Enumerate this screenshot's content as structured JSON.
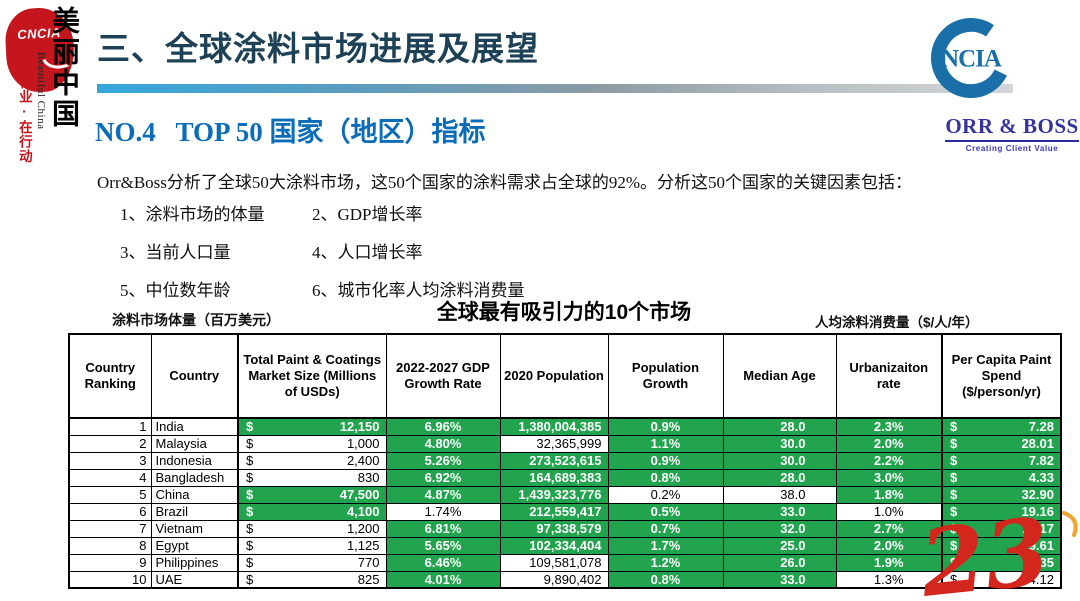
{
  "sidebar": {
    "seal_text": "CNCIA",
    "slogan_cn": "美丽中国",
    "slogan_en": "Beautiful China",
    "industry_text": "涂料行业·在行动"
  },
  "header": {
    "title": "三、全球涂料市场进展及展望",
    "subtitle": "NO.4   TOP 50 国家（地区）指标"
  },
  "logos": {
    "ncia_text": "NCIA",
    "orrboss_name": "ORR & BOSS",
    "orrboss_tagline": "Creating Client Value"
  },
  "intro": {
    "paragraph": "Orr&Boss分析了全球50大涂料市场，这50个国家的涂料需求占全球的92%。分析这50个国家的关键因素包括：",
    "factors": [
      "1、涂料市场的体量",
      "2、GDP增长率",
      "3、当前人口量",
      "4、人口增长率",
      "5、中位数年龄",
      "6、城市化率人均涂料消费量"
    ]
  },
  "table_section": {
    "left_label": "涂料市场体量（百万美元）",
    "title": "全球最有吸引力的10个市场",
    "right_label": "人均涂料消费量（$/人/年）"
  },
  "table": {
    "currency": "$",
    "headers": [
      "Country Ranking",
      "Country",
      "Total Paint & Coatings Market Size (Millions of USDs)",
      "2022-2027 GDP Growth Rate",
      "2020 Population",
      "Population Growth",
      "Median Age",
      "Urbanizaiton rate",
      "Per Capita Paint Spend ($/person/yr)"
    ],
    "rows": [
      {
        "rank": "1",
        "country": "India",
        "market": "12,150",
        "market_hl": true,
        "gdp": "6.96%",
        "gdp_hl": true,
        "pop": "1,380,004,385",
        "pop_hl": true,
        "growth": "0.9%",
        "growth_hl": true,
        "age": "28.0",
        "age_hl": true,
        "urban": "2.3%",
        "urban_hl": true,
        "spend": "7.28",
        "spend_hl": true
      },
      {
        "rank": "2",
        "country": "Malaysia",
        "market": "1,000",
        "market_hl": false,
        "gdp": "4.80%",
        "gdp_hl": true,
        "pop": "32,365,999",
        "pop_hl": false,
        "growth": "1.1%",
        "growth_hl": true,
        "age": "30.0",
        "age_hl": true,
        "urban": "2.0%",
        "urban_hl": true,
        "spend": "28.01",
        "spend_hl": true
      },
      {
        "rank": "3",
        "country": "Indonesia",
        "market": "2,400",
        "market_hl": false,
        "gdp": "5.26%",
        "gdp_hl": true,
        "pop": "273,523,615",
        "pop_hl": true,
        "growth": "0.9%",
        "growth_hl": true,
        "age": "30.0",
        "age_hl": true,
        "urban": "2.2%",
        "urban_hl": true,
        "spend": "7.82",
        "spend_hl": true
      },
      {
        "rank": "4",
        "country": "Bangladesh",
        "market": "830",
        "market_hl": false,
        "gdp": "6.92%",
        "gdp_hl": true,
        "pop": "164,689,383",
        "pop_hl": true,
        "growth": "0.8%",
        "growth_hl": true,
        "age": "28.0",
        "age_hl": true,
        "urban": "3.0%",
        "urban_hl": true,
        "spend": "4.33",
        "spend_hl": true
      },
      {
        "rank": "5",
        "country": "China",
        "market": "47,500",
        "market_hl": true,
        "gdp": "4.87%",
        "gdp_hl": true,
        "pop": "1,439,323,776",
        "pop_hl": true,
        "growth": "0.2%",
        "growth_hl": false,
        "age": "38.0",
        "age_hl": false,
        "urban": "1.8%",
        "urban_hl": true,
        "spend": "32.90",
        "spend_hl": true
      },
      {
        "rank": "6",
        "country": "Brazil",
        "market": "4,100",
        "market_hl": true,
        "gdp": "1.74%",
        "gdp_hl": false,
        "pop": "212,559,417",
        "pop_hl": true,
        "growth": "0.5%",
        "growth_hl": true,
        "age": "33.0",
        "age_hl": true,
        "urban": "1.0%",
        "urban_hl": false,
        "spend": "19.16",
        "spend_hl": true
      },
      {
        "rank": "7",
        "country": "Vietnam",
        "market": "1,200",
        "market_hl": false,
        "gdp": "6.81%",
        "gdp_hl": true,
        "pop": "97,338,579",
        "pop_hl": true,
        "growth": "0.7%",
        "growth_hl": true,
        "age": "32.0",
        "age_hl": true,
        "urban": "2.7%",
        "urban_hl": true,
        "spend": "11.17",
        "spend_hl": true
      },
      {
        "rank": "8",
        "country": "Egypt",
        "market": "1,125",
        "market_hl": false,
        "gdp": "5.65%",
        "gdp_hl": true,
        "pop": "102,334,404",
        "pop_hl": true,
        "growth": "1.7%",
        "growth_hl": true,
        "age": "25.0",
        "age_hl": true,
        "urban": "2.0%",
        "urban_hl": true,
        "spend": "9.61",
        "spend_hl": true
      },
      {
        "rank": "9",
        "country": "Philippines",
        "market": "770",
        "market_hl": false,
        "gdp": "6.46%",
        "gdp_hl": true,
        "pop": "109,581,078",
        "pop_hl": false,
        "growth": "1.2%",
        "growth_hl": true,
        "age": "26.0",
        "age_hl": true,
        "urban": "1.9%",
        "urban_hl": true,
        "spend": "6.35",
        "spend_hl": true
      },
      {
        "rank": "10",
        "country": "UAE",
        "market": "825",
        "market_hl": false,
        "gdp": "4.01%",
        "gdp_hl": true,
        "pop": "9,890,402",
        "pop_hl": false,
        "growth": "0.8%",
        "growth_hl": true,
        "age": "33.0",
        "age_hl": true,
        "urban": "1.3%",
        "urban_hl": false,
        "spend": "74.12",
        "spend_hl": false
      }
    ]
  },
  "watermark": {
    "text": "23"
  },
  "colors": {
    "highlight_green": "#21a44d",
    "title_teal": "#1d4156",
    "subtitle_blue": "#0b6cb8",
    "brand_red": "#c4161c",
    "logo_blue": "#1a6fa8",
    "orrboss_blue": "#3434a0"
  }
}
